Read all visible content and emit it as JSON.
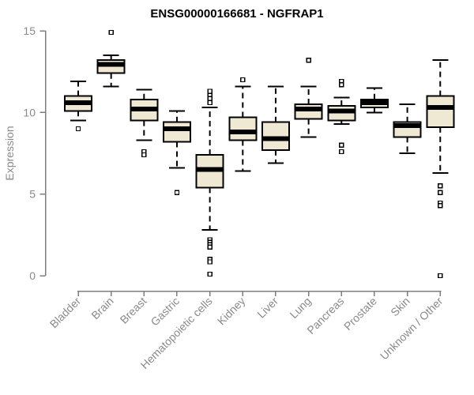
{
  "chart_data": {
    "type": "boxplot",
    "title": "ENSG00000166681 - NGFRAP1",
    "ylabel": "Expression",
    "xlabel": "",
    "ylim": [
      0,
      15
    ],
    "yticks": [
      0,
      5,
      10,
      15
    ],
    "grid": false,
    "legend": "none",
    "colors": {
      "box_fill": "#EFE9D3",
      "box_stroke": "#000000",
      "median": "#000000",
      "whisker": "#000000",
      "outlier_stroke": "#000000",
      "axis": "#7e7e7e",
      "tick_label": "#8a8a8a",
      "title": "#000000",
      "background": "#ffffff"
    },
    "categories": [
      "Bladder",
      "Brain",
      "Breast",
      "Gastric",
      "Hematopoietic cells",
      "Kidney",
      "Liver",
      "Lung",
      "Pancreas",
      "Prostate",
      "Skin",
      "Unknown / Other"
    ],
    "series": [
      {
        "name": "Bladder",
        "whisker_low": 9.5,
        "q1": 10.1,
        "median": 10.6,
        "q3": 11.0,
        "whisker_high": 11.9,
        "outliers": [
          9.0
        ]
      },
      {
        "name": "Brain",
        "whisker_low": 11.6,
        "q1": 12.4,
        "median": 12.95,
        "q3": 13.2,
        "whisker_high": 13.5,
        "outliers": [
          14.9
        ]
      },
      {
        "name": "Breast",
        "whisker_low": 8.3,
        "q1": 9.5,
        "median": 10.2,
        "q3": 10.8,
        "whisker_high": 11.4,
        "outliers": [
          7.6,
          7.4
        ]
      },
      {
        "name": "Gastric",
        "whisker_low": 6.6,
        "q1": 8.2,
        "median": 9.0,
        "q3": 9.4,
        "whisker_high": 10.1,
        "outliers": [
          5.1
        ]
      },
      {
        "name": "Hematopoietic cells",
        "whisker_low": 2.8,
        "q1": 5.4,
        "median": 6.5,
        "q3": 7.4,
        "whisker_high": 10.3,
        "outliers": [
          11.3,
          11.05,
          10.85,
          10.6,
          2.2,
          2.05,
          1.9,
          1.75,
          1.0,
          0.85,
          0.1
        ]
      },
      {
        "name": "Kidney",
        "whisker_low": 6.4,
        "q1": 8.3,
        "median": 8.8,
        "q3": 9.7,
        "whisker_high": 11.6,
        "outliers": [
          12.0
        ]
      },
      {
        "name": "Liver",
        "whisker_low": 6.9,
        "q1": 7.7,
        "median": 8.4,
        "q3": 9.4,
        "whisker_high": 11.6,
        "outliers": []
      },
      {
        "name": "Lung",
        "whisker_low": 8.5,
        "q1": 9.6,
        "median": 10.2,
        "q3": 10.5,
        "whisker_high": 11.6,
        "outliers": [
          13.2
        ]
      },
      {
        "name": "Pancreas",
        "whisker_low": 9.3,
        "q1": 9.5,
        "median": 10.1,
        "q3": 10.4,
        "whisker_high": 10.9,
        "outliers": [
          11.9,
          11.7,
          8.0,
          7.6
        ]
      },
      {
        "name": "Prostate",
        "whisker_low": 10.0,
        "q1": 10.3,
        "median": 10.6,
        "q3": 10.8,
        "whisker_high": 11.5,
        "outliers": []
      },
      {
        "name": "Skin",
        "whisker_low": 7.5,
        "q1": 8.5,
        "median": 9.2,
        "q3": 9.4,
        "whisker_high": 10.5,
        "outliers": []
      },
      {
        "name": "Unknown / Other",
        "whisker_low": 6.3,
        "q1": 9.1,
        "median": 10.3,
        "q3": 11.0,
        "whisker_high": 13.2,
        "outliers": [
          5.5,
          5.1,
          4.45,
          4.3,
          0.0
        ]
      }
    ]
  }
}
